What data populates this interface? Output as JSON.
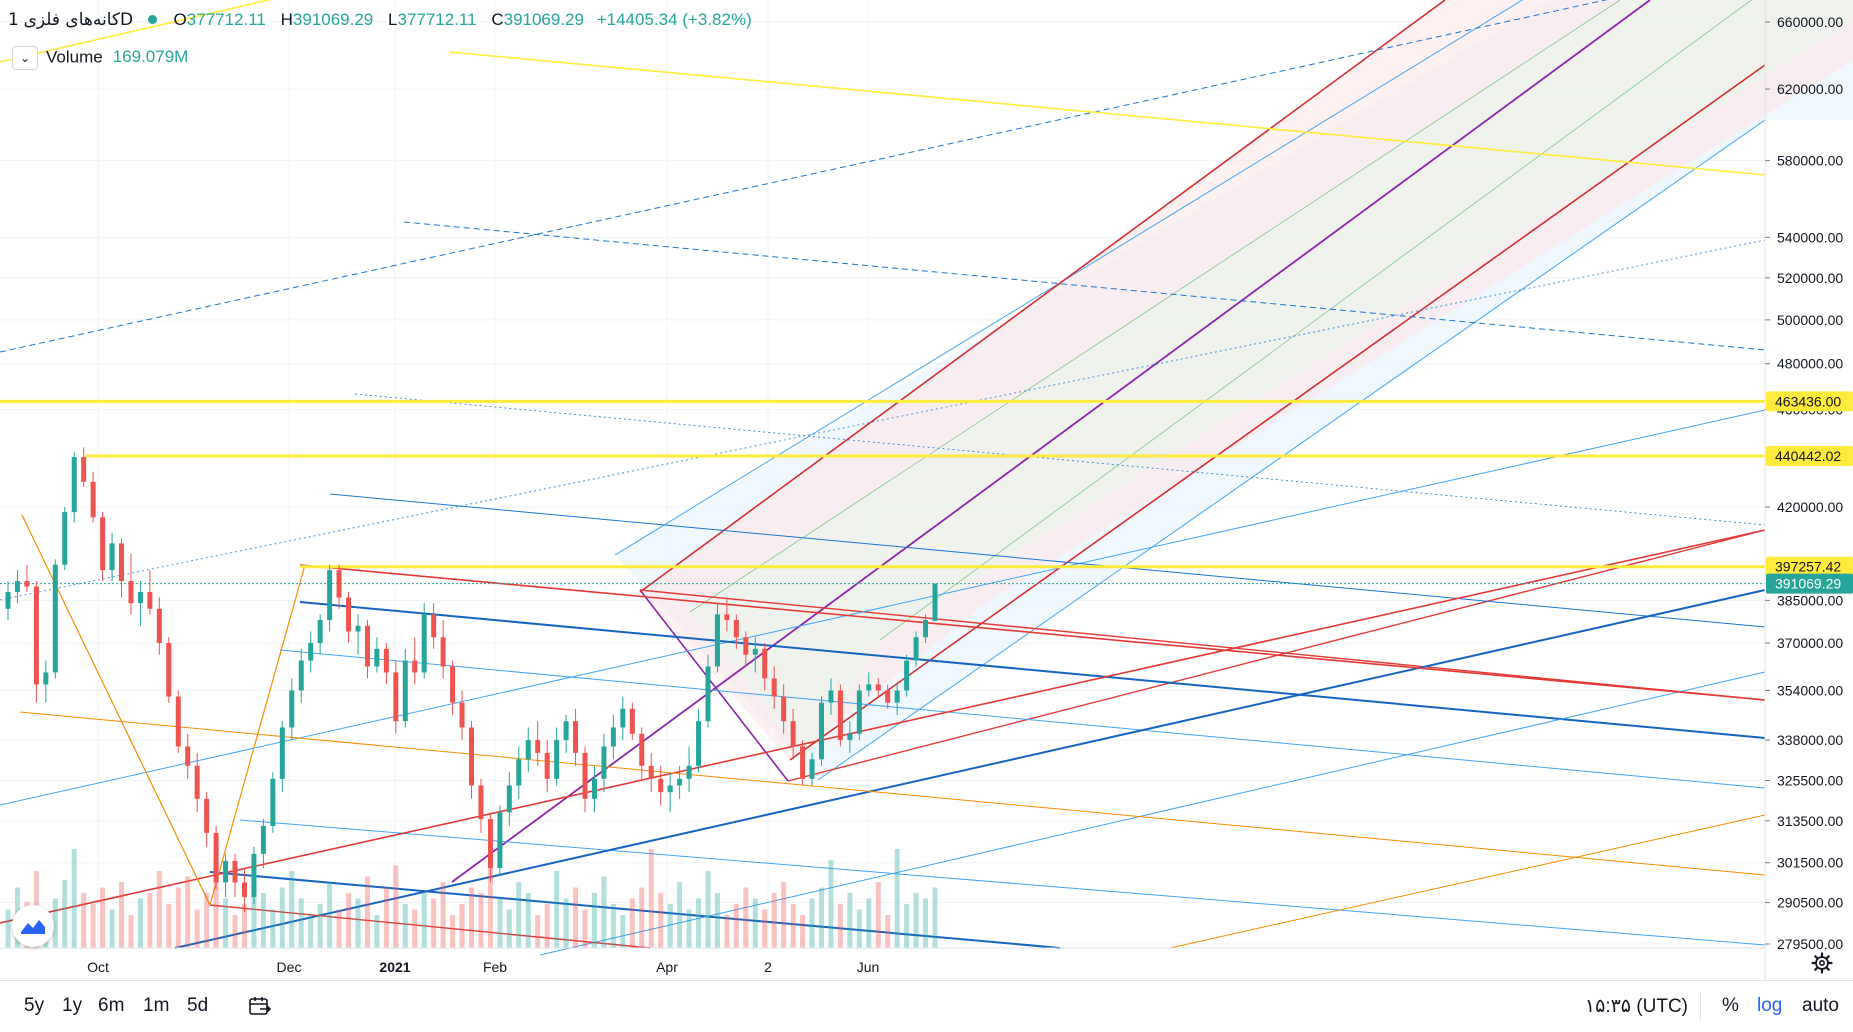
{
  "header": {
    "symbol": "کانه‌های فلزی",
    "interval": "1D",
    "ohlc": [
      {
        "label": "O",
        "value": "377712.11"
      },
      {
        "label": "H",
        "value": "391069.29"
      },
      {
        "label": "L",
        "value": "377712.11"
      },
      {
        "label": "C",
        "value": "391069.29"
      }
    ],
    "change": "+14405.34 (+3.82%)",
    "up_color": "#26a69a",
    "down_color": "#ef5350"
  },
  "volume": {
    "label": "Volume",
    "value": "169.079M"
  },
  "chart_data": {
    "type": "candlestick",
    "scale": "log",
    "y_ticks": [
      660000,
      620000,
      580000,
      540000,
      520000,
      500000,
      480000,
      460000,
      420000,
      385000,
      370000,
      354000,
      338000,
      325500,
      313500,
      301500,
      290500,
      279500
    ],
    "y_tick_labels": [
      "660000.00",
      "620000.00",
      "580000.00",
      "540000.00",
      "520000.00",
      "500000.00",
      "480000.00",
      "460000.00",
      "420000.00",
      "385000.00",
      "370000.00",
      "354000.00",
      "338000.00",
      "325500.00",
      "313500.00",
      "301500.00",
      "290500.00",
      "279500.00"
    ],
    "x_labels": [
      "Oct",
      "Dec",
      "2021",
      "Feb",
      "Apr",
      "2",
      "Jun"
    ],
    "price_badges": [
      {
        "label": "463436.00",
        "color": "#ffeb3b"
      },
      {
        "label": "440442.02",
        "color": "#ffeb3b"
      },
      {
        "label": "397257.42",
        "color": "#ffeb3b"
      },
      {
        "label": "391069.29",
        "color": "#26a69a"
      }
    ],
    "last_price": 391069.29,
    "candles": [
      [
        382000,
        392000,
        378000,
        388000
      ],
      [
        388000,
        396000,
        384000,
        392000
      ],
      [
        392000,
        398000,
        388000,
        390000
      ],
      [
        390000,
        392000,
        350000,
        356000
      ],
      [
        356000,
        364000,
        350000,
        360000
      ],
      [
        360000,
        400000,
        358000,
        398000
      ],
      [
        398000,
        420000,
        396000,
        418000
      ],
      [
        418000,
        442000,
        414000,
        440000
      ],
      [
        440000,
        444000,
        428000,
        430000
      ],
      [
        430000,
        434000,
        414000,
        416000
      ],
      [
        416000,
        418000,
        392000,
        396000
      ],
      [
        396000,
        410000,
        392000,
        406000
      ],
      [
        406000,
        408000,
        386000,
        392000
      ],
      [
        392000,
        402000,
        380000,
        384000
      ],
      [
        384000,
        392000,
        376000,
        388000
      ],
      [
        388000,
        396000,
        380000,
        382000
      ],
      [
        382000,
        386000,
        366000,
        370000
      ],
      [
        370000,
        372000,
        350000,
        352000
      ],
      [
        352000,
        354000,
        334000,
        336000
      ],
      [
        336000,
        340000,
        326000,
        330000
      ],
      [
        330000,
        334000,
        316000,
        320000
      ],
      [
        320000,
        322000,
        306000,
        310000
      ],
      [
        310000,
        312000,
        294000,
        296000
      ],
      [
        296000,
        304000,
        292000,
        302000
      ],
      [
        302000,
        304000,
        292000,
        296000
      ],
      [
        296000,
        300000,
        288000,
        292000
      ],
      [
        292000,
        306000,
        290000,
        304000
      ],
      [
        304000,
        314000,
        300000,
        312000
      ],
      [
        312000,
        328000,
        310000,
        326000
      ],
      [
        326000,
        344000,
        322000,
        342000
      ],
      [
        342000,
        358000,
        338000,
        354000
      ],
      [
        354000,
        368000,
        350000,
        364000
      ],
      [
        364000,
        374000,
        360000,
        370000
      ],
      [
        370000,
        380000,
        366000,
        378000
      ],
      [
        378000,
        398000,
        374000,
        396000
      ],
      [
        396000,
        398000,
        382000,
        386000
      ],
      [
        386000,
        388000,
        370000,
        374000
      ],
      [
        374000,
        380000,
        366000,
        376000
      ],
      [
        376000,
        378000,
        358000,
        362000
      ],
      [
        362000,
        372000,
        360000,
        368000
      ],
      [
        368000,
        370000,
        356000,
        360000
      ],
      [
        360000,
        364000,
        340000,
        344000
      ],
      [
        344000,
        368000,
        342000,
        364000
      ],
      [
        364000,
        372000,
        356000,
        360000
      ],
      [
        360000,
        384000,
        358000,
        380000
      ],
      [
        380000,
        384000,
        368000,
        372000
      ],
      [
        372000,
        378000,
        358000,
        362000
      ],
      [
        362000,
        364000,
        346000,
        350000
      ],
      [
        350000,
        354000,
        338000,
        342000
      ],
      [
        342000,
        344000,
        320000,
        324000
      ],
      [
        324000,
        326000,
        310000,
        314000
      ],
      [
        314000,
        316000,
        296000,
        300000
      ],
      [
        300000,
        318000,
        298000,
        316000
      ],
      [
        316000,
        328000,
        312000,
        324000
      ],
      [
        324000,
        336000,
        320000,
        332000
      ],
      [
        332000,
        342000,
        328000,
        338000
      ],
      [
        338000,
        344000,
        330000,
        334000
      ],
      [
        334000,
        338000,
        322000,
        326000
      ],
      [
        326000,
        342000,
        324000,
        338000
      ],
      [
        338000,
        346000,
        334000,
        344000
      ],
      [
        344000,
        348000,
        330000,
        334000
      ],
      [
        334000,
        336000,
        316000,
        320000
      ],
      [
        320000,
        330000,
        316000,
        326000
      ],
      [
        326000,
        340000,
        322000,
        336000
      ],
      [
        336000,
        346000,
        332000,
        342000
      ],
      [
        342000,
        352000,
        338000,
        348000
      ],
      [
        348000,
        350000,
        338000,
        340000
      ],
      [
        340000,
        342000,
        326000,
        330000
      ],
      [
        330000,
        334000,
        322000,
        326000
      ],
      [
        326000,
        330000,
        318000,
        322000
      ],
      [
        322000,
        328000,
        316000,
        324000
      ],
      [
        324000,
        330000,
        320000,
        326000
      ],
      [
        326000,
        336000,
        322000,
        330000
      ],
      [
        330000,
        348000,
        328000,
        344000
      ],
      [
        344000,
        366000,
        342000,
        362000
      ],
      [
        362000,
        384000,
        360000,
        380000
      ],
      [
        380000,
        386000,
        374000,
        378000
      ],
      [
        378000,
        380000,
        368000,
        372000
      ],
      [
        372000,
        374000,
        362000,
        366000
      ],
      [
        366000,
        372000,
        360000,
        368000
      ],
      [
        368000,
        370000,
        354000,
        358000
      ],
      [
        358000,
        362000,
        348000,
        352000
      ],
      [
        352000,
        356000,
        340000,
        344000
      ],
      [
        344000,
        348000,
        332000,
        336000
      ],
      [
        336000,
        338000,
        324000,
        326000
      ],
      [
        326000,
        334000,
        324000,
        332000
      ],
      [
        332000,
        352000,
        330000,
        350000
      ],
      [
        350000,
        358000,
        346000,
        354000
      ],
      [
        354000,
        356000,
        336000,
        338000
      ],
      [
        338000,
        344000,
        334000,
        340000
      ],
      [
        340000,
        356000,
        338000,
        354000
      ],
      [
        354000,
        360000,
        352000,
        356000
      ],
      [
        356000,
        358000,
        352000,
        354000
      ],
      [
        354000,
        356000,
        348000,
        350000
      ],
      [
        350000,
        356000,
        346000,
        354000
      ],
      [
        354000,
        366000,
        352000,
        364000
      ],
      [
        364000,
        374000,
        362000,
        372000
      ],
      [
        372000,
        380000,
        370000,
        378000
      ],
      [
        377712,
        391069,
        377712,
        391069
      ]
    ],
    "volumes": [
      0.35,
      0.55,
      0.42,
      0.7,
      0.3,
      0.45,
      0.62,
      0.9,
      0.5,
      0.4,
      0.55,
      0.35,
      0.6,
      0.3,
      0.45,
      0.5,
      0.7,
      0.4,
      0.55,
      0.65,
      0.35,
      0.5,
      0.8,
      0.45,
      0.3,
      0.4,
      0.6,
      0.5,
      0.35,
      0.55,
      0.7,
      0.45,
      0.3,
      0.4,
      0.6,
      0.35,
      0.5,
      0.45,
      0.65,
      0.3,
      0.55,
      0.75,
      0.4,
      0.35,
      0.5,
      0.45,
      0.6,
      0.3,
      0.4,
      0.55,
      0.5,
      0.85,
      0.45,
      0.35,
      0.6,
      0.5,
      0.3,
      0.4,
      0.7,
      0.45,
      0.55,
      0.35,
      0.5,
      0.65,
      0.4,
      0.3,
      0.45,
      0.55,
      0.9,
      0.5,
      0.4,
      0.6,
      0.35,
      0.45,
      0.7,
      0.5,
      0.3,
      0.4,
      0.55,
      0.45,
      0.35,
      0.5,
      0.6,
      0.4,
      0.3,
      0.45,
      0.55,
      0.8,
      0.4,
      0.5,
      0.35,
      0.45,
      0.6,
      0.3,
      0.9,
      0.4,
      0.5,
      0.45,
      0.55
    ]
  },
  "bottom": {
    "ranges": [
      "5y",
      "1y",
      "6m",
      "1m",
      "5d"
    ],
    "timezone": "۱۵:۳۵ (UTC)",
    "percent": "%",
    "log": "log",
    "auto": "auto"
  }
}
